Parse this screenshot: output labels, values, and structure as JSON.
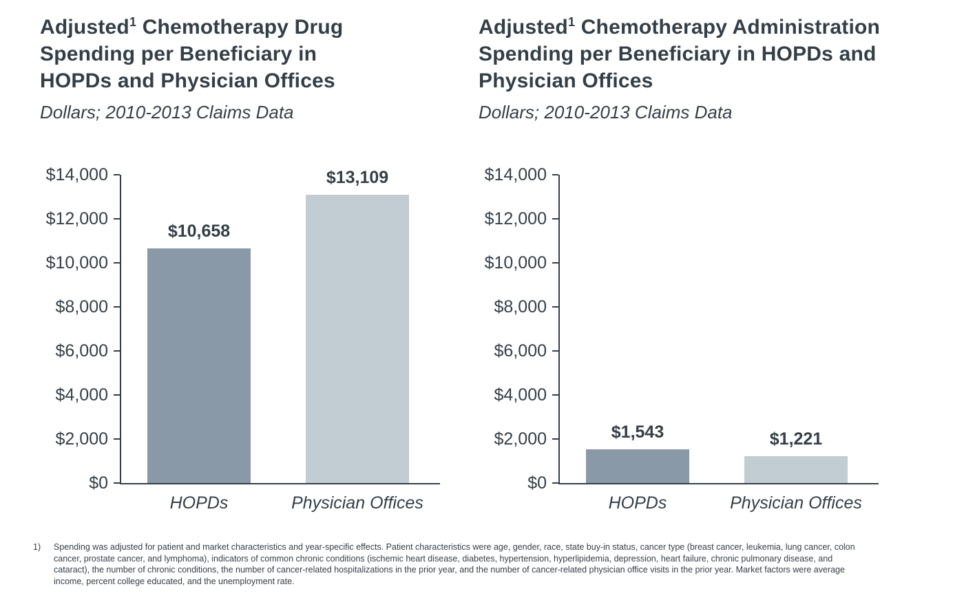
{
  "colors": {
    "text": "#333f48",
    "axis": "#333f48",
    "bar_hopds": "#8a99a8",
    "bar_physician_offices": "#c2ccd3"
  },
  "chart_data": [
    {
      "type": "bar",
      "title": "Adjusted¹ Chemotherapy Drug Spending per Beneficiary in HOPDs and Physician Offices",
      "title_pre": "Adjusted",
      "title_sup": "1",
      "title_post": " Chemotherapy Drug Spending per Beneficiary in HOPDs and Physician Offices",
      "subtitle": "Dollars; 2010-2013 Claims Data",
      "categories": [
        "HOPDs",
        "Physician Offices"
      ],
      "values": [
        10658,
        13109
      ],
      "value_labels": [
        "$10,658",
        "$13,109"
      ],
      "bar_colors": [
        "#8a99a8",
        "#c2ccd3"
      ],
      "xlabel": "",
      "ylabel": "",
      "ylim": [
        0,
        14000
      ],
      "grid": false,
      "legend": "none",
      "yticks": [
        {
          "value": 0,
          "label": "$0"
        },
        {
          "value": 2000,
          "label": "$2,000"
        },
        {
          "value": 4000,
          "label": "$4,000"
        },
        {
          "value": 6000,
          "label": "$6,000"
        },
        {
          "value": 8000,
          "label": "$8,000"
        },
        {
          "value": 10000,
          "label": "$10,000"
        },
        {
          "value": 12000,
          "label": "$12,000"
        },
        {
          "value": 14000,
          "label": "$14,000"
        }
      ]
    },
    {
      "type": "bar",
      "title": "Adjusted¹ Chemotherapy Administration Spending per Beneficiary in HOPDs and Physician Offices",
      "title_pre": "Adjusted",
      "title_sup": "1",
      "title_post": " Chemotherapy Administration Spending per Beneficiary in HOPDs and Physician Offices",
      "subtitle": "Dollars; 2010-2013 Claims Data",
      "categories": [
        "HOPDs",
        "Physician Offices"
      ],
      "values": [
        1543,
        1221
      ],
      "value_labels": [
        "$1,543",
        "$1,221"
      ],
      "bar_colors": [
        "#8a99a8",
        "#c2ccd3"
      ],
      "xlabel": "",
      "ylabel": "",
      "ylim": [
        0,
        14000
      ],
      "grid": false,
      "legend": "none",
      "yticks": [
        {
          "value": 0,
          "label": "$0"
        },
        {
          "value": 2000,
          "label": "$2,000"
        },
        {
          "value": 4000,
          "label": "$4,000"
        },
        {
          "value": 6000,
          "label": "$6,000"
        },
        {
          "value": 8000,
          "label": "$8,000"
        },
        {
          "value": 10000,
          "label": "$10,000"
        },
        {
          "value": 12000,
          "label": "$12,000"
        },
        {
          "value": 14000,
          "label": "$14,000"
        }
      ]
    }
  ],
  "footnote": {
    "marker": "1)",
    "text": "Spending was adjusted for patient and market characteristics and year-specific effects. Patient characteristics were age, gender, race, state buy-in status, cancer type (breast cancer, leukemia, lung cancer, colon cancer, prostate cancer, and lymphoma), indicators of common chronic conditions (ischemic heart disease, diabetes, hypertension, hyperlipidemia, depression, heart failure, chronic pulmonary disease, and cataract), the number of chronic conditions, the number of cancer-related hospitalizations in the prior year, and the number of cancer-related physician office visits in the prior year. Market factors were average income, percent college educated, and the unemployment rate."
  }
}
